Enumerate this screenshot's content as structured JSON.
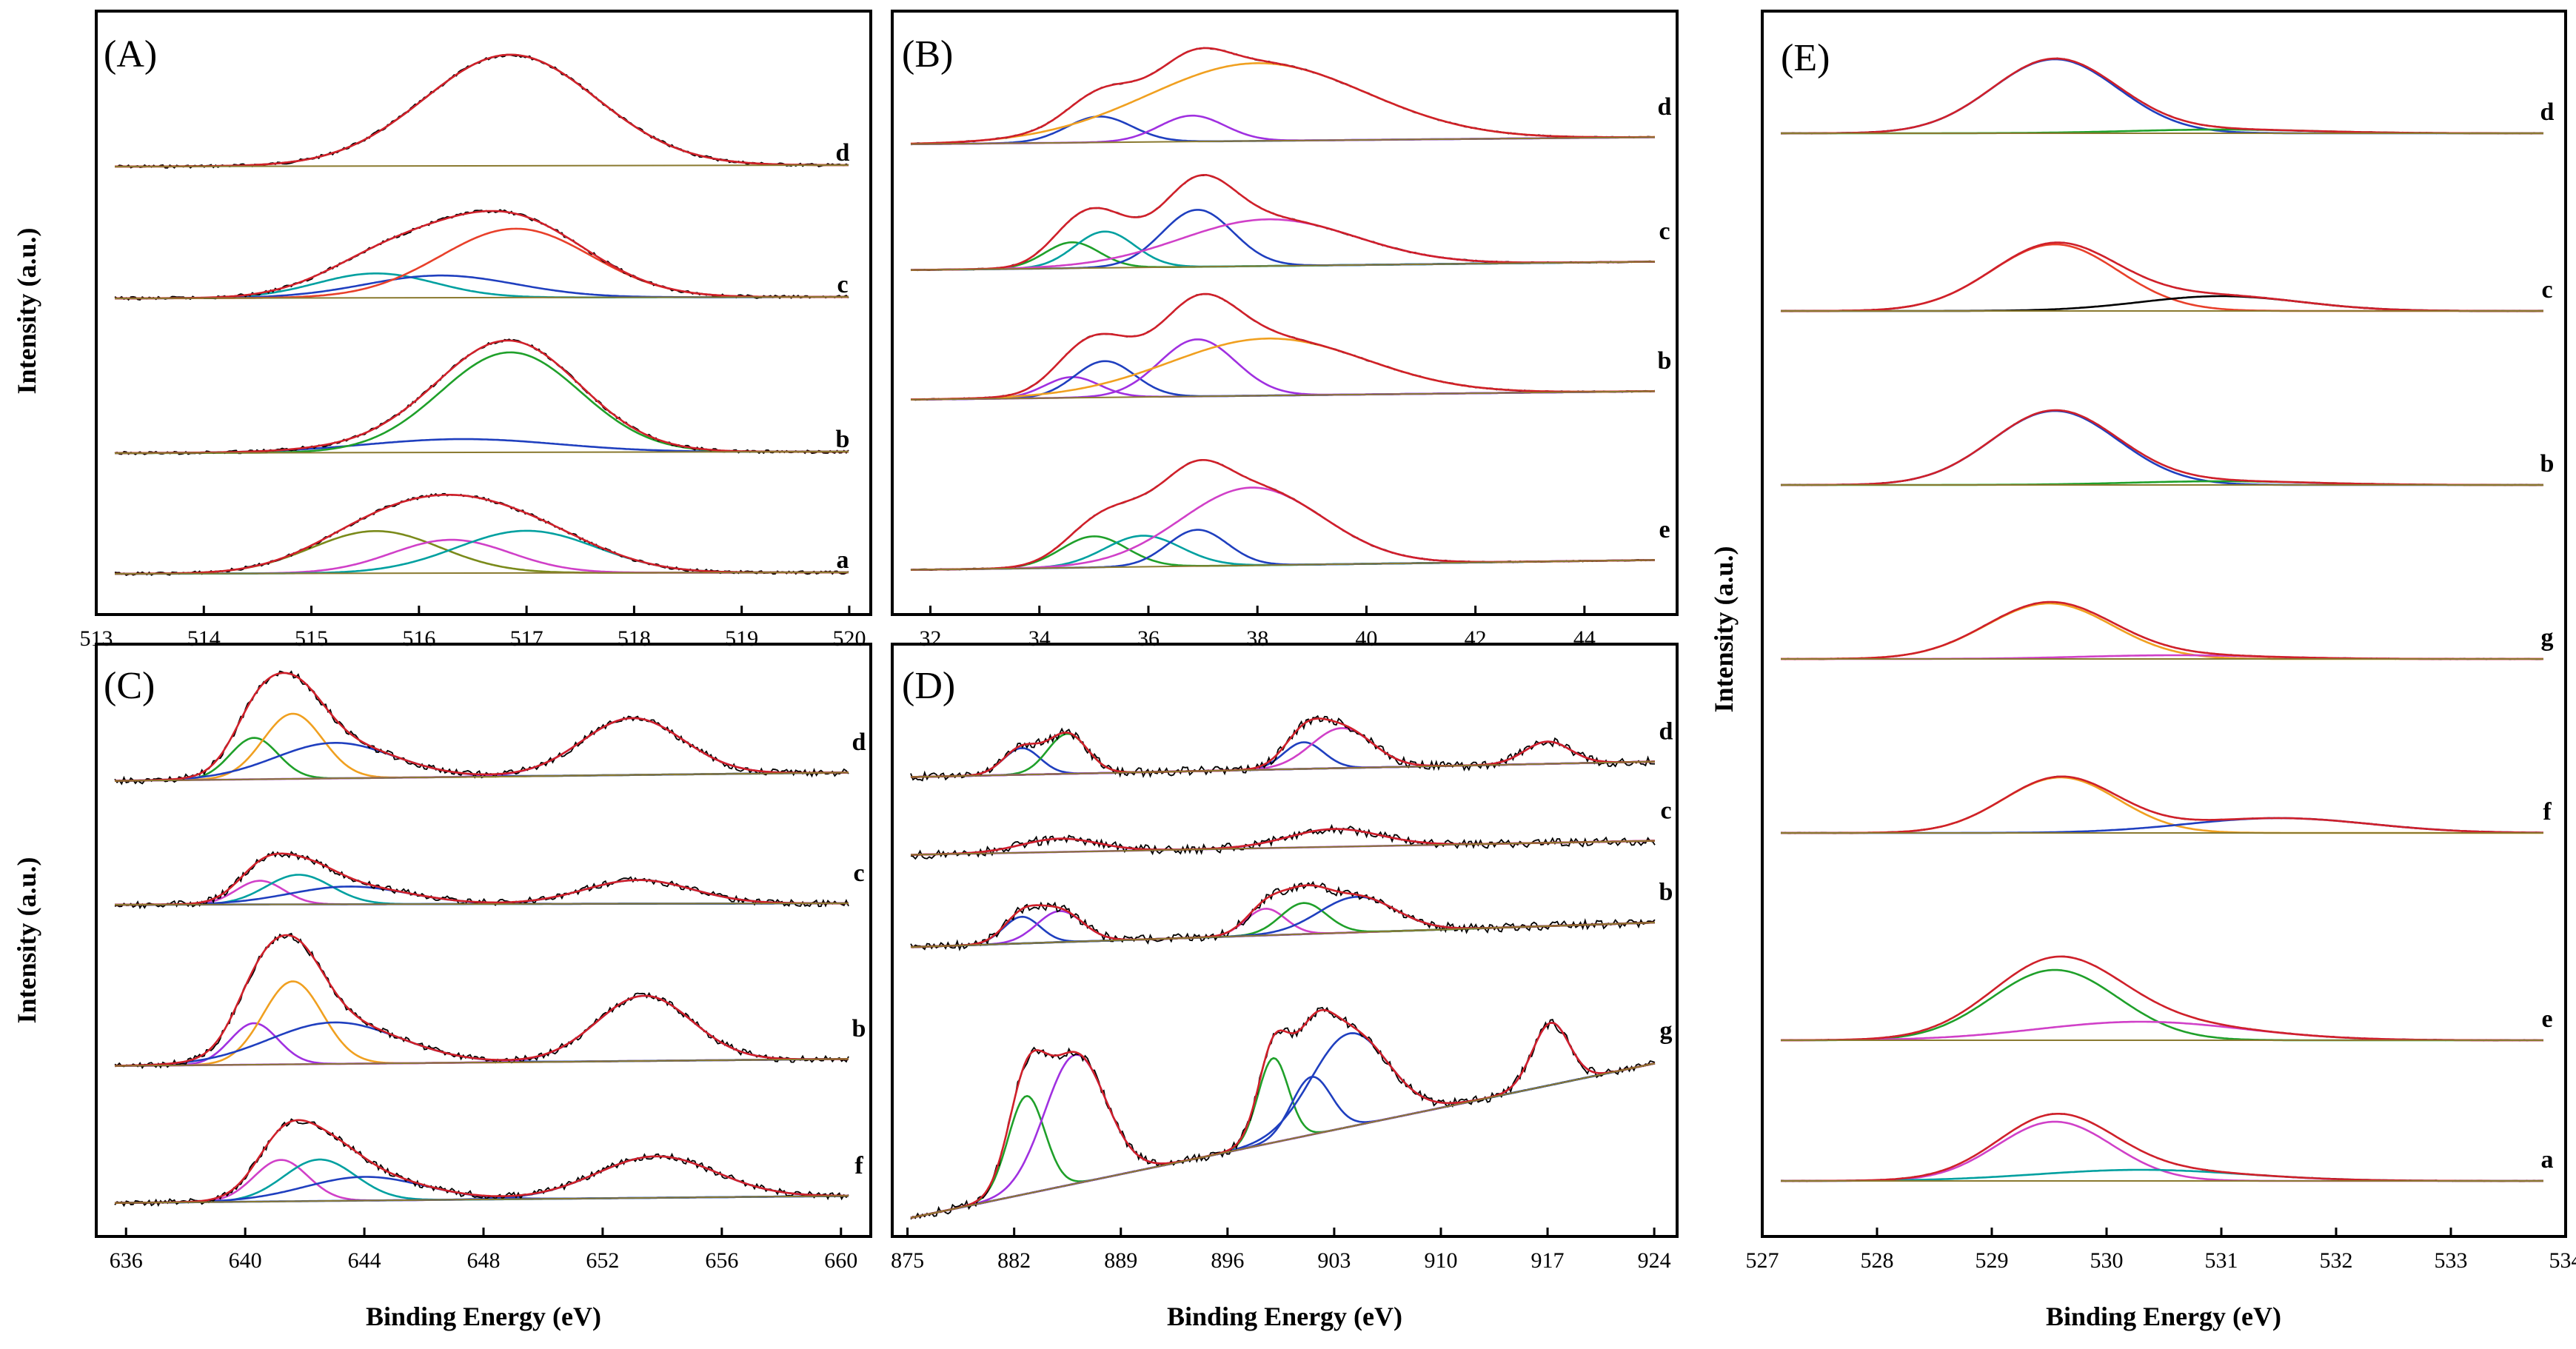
{
  "chart_data": [
    {
      "panel": "A",
      "label": "(A)",
      "type": "line",
      "x_ticks": [
        513,
        514,
        515,
        516,
        517,
        518,
        519,
        520
      ],
      "xlim": [
        513,
        520.2
      ],
      "series_labels": [
        "d",
        "c",
        "b",
        "a"
      ],
      "series": [
        {
          "name": "d",
          "peaks": [
            {
              "center": 516.85,
              "amplitude": 1.0,
              "width": 0.8,
              "color": "#8B4513"
            }
          ]
        },
        {
          "name": "c",
          "peaks": [
            {
              "center": 515.6,
              "amplitude": 0.22,
              "width": 0.55,
              "color": "#00a0a0"
            },
            {
              "center": 516.2,
              "amplitude": 0.2,
              "width": 0.7,
              "color": "#1f3fbf"
            },
            {
              "center": 516.9,
              "amplitude": 0.62,
              "width": 0.7,
              "color": "#e8402a"
            }
          ]
        },
        {
          "name": "b",
          "peaks": [
            {
              "center": 516.4,
              "amplitude": 0.12,
              "width": 0.9,
              "color": "#1f3fbf"
            },
            {
              "center": 516.85,
              "amplitude": 0.9,
              "width": 0.65,
              "color": "#1fa02a"
            }
          ]
        },
        {
          "name": "a",
          "peaks": [
            {
              "center": 515.6,
              "amplitude": 0.38,
              "width": 0.6,
              "color": "#7a8a1a"
            },
            {
              "center": 516.3,
              "amplitude": 0.3,
              "width": 0.55,
              "color": "#d040c8"
            },
            {
              "center": 517.0,
              "amplitude": 0.38,
              "width": 0.65,
              "color": "#00a0a0"
            }
          ]
        }
      ]
    },
    {
      "panel": "B",
      "label": "(B)",
      "type": "line",
      "x_ticks": [
        32,
        34,
        36,
        38,
        40,
        42,
        44
      ],
      "xlim": [
        31.3,
        45.7
      ],
      "series_labels": [
        "d",
        "c",
        "b",
        "e"
      ],
      "series": [
        {
          "name": "d",
          "peaks": [
            {
              "center": 35.1,
              "amplitude": 0.25,
              "width": 0.6,
              "color": "#1f3fbf"
            },
            {
              "center": 36.8,
              "amplitude": 0.25,
              "width": 0.6,
              "color": "#a030e0"
            },
            {
              "center": 38.0,
              "amplitude": 0.75,
              "width": 2.0,
              "color": "#f0a020"
            }
          ]
        },
        {
          "name": "c",
          "peaks": [
            {
              "center": 34.6,
              "amplitude": 0.25,
              "width": 0.5,
              "color": "#1fa02a"
            },
            {
              "center": 35.2,
              "amplitude": 0.35,
              "width": 0.55,
              "color": "#00a0a0"
            },
            {
              "center": 36.9,
              "amplitude": 0.55,
              "width": 0.65,
              "color": "#1f3fbf"
            },
            {
              "center": 38.2,
              "amplitude": 0.45,
              "width": 1.6,
              "color": "#d040c8"
            }
          ]
        },
        {
          "name": "b",
          "peaks": [
            {
              "center": 34.6,
              "amplitude": 0.2,
              "width": 0.5,
              "color": "#a030e0"
            },
            {
              "center": 35.2,
              "amplitude": 0.35,
              "width": 0.55,
              "color": "#1f3fbf"
            },
            {
              "center": 36.9,
              "amplitude": 0.55,
              "width": 0.7,
              "color": "#a030e0"
            },
            {
              "center": 38.2,
              "amplitude": 0.55,
              "width": 1.8,
              "color": "#f0a020"
            }
          ]
        },
        {
          "name": "e",
          "peaks": [
            {
              "center": 35.0,
              "amplitude": 0.3,
              "width": 0.6,
              "color": "#1fa02a"
            },
            {
              "center": 35.9,
              "amplitude": 0.3,
              "width": 0.7,
              "color": "#00a0a0"
            },
            {
              "center": 36.9,
              "amplitude": 0.35,
              "width": 0.55,
              "color": "#1f3fbf"
            },
            {
              "center": 37.9,
              "amplitude": 0.75,
              "width": 1.3,
              "color": "#d040c8"
            }
          ]
        }
      ]
    },
    {
      "panel": "C",
      "label": "(C)",
      "type": "line",
      "x_ticks": [
        636,
        640,
        644,
        648,
        652,
        656,
        660
      ],
      "xlim": [
        635,
        661
      ],
      "series_labels": [
        "d",
        "c",
        "b",
        "f"
      ],
      "series": [
        {
          "name": "d",
          "peaks": [
            {
              "center": 640.3,
              "amplitude": 0.35,
              "width": 0.8,
              "color": "#1fa02a"
            },
            {
              "center": 641.6,
              "amplitude": 0.55,
              "width": 1.0,
              "color": "#f0a020"
            },
            {
              "center": 643.0,
              "amplitude": 0.3,
              "width": 2.0,
              "color": "#1f3fbf"
            },
            {
              "center": 653.0,
              "amplitude": 0.48,
              "width": 1.7,
              "color": "#a030e0"
            }
          ]
        },
        {
          "name": "c",
          "peaks": [
            {
              "center": 640.5,
              "amplitude": 0.2,
              "width": 0.8,
              "color": "#d040c8"
            },
            {
              "center": 641.8,
              "amplitude": 0.25,
              "width": 1.1,
              "color": "#00a0a0"
            },
            {
              "center": 643.5,
              "amplitude": 0.15,
              "width": 2.0,
              "color": "#1f3fbf"
            },
            {
              "center": 653.2,
              "amplitude": 0.2,
              "width": 1.8,
              "color": "#1f3fbf"
            }
          ]
        },
        {
          "name": "b",
          "peaks": [
            {
              "center": 640.3,
              "amplitude": 0.35,
              "width": 0.8,
              "color": "#a030e0"
            },
            {
              "center": 641.6,
              "amplitude": 0.7,
              "width": 1.0,
              "color": "#f0a020"
            },
            {
              "center": 643.0,
              "amplitude": 0.35,
              "width": 2.2,
              "color": "#1f3fbf"
            },
            {
              "center": 653.4,
              "amplitude": 0.55,
              "width": 1.6,
              "color": "#a030e0"
            }
          ]
        },
        {
          "name": "f",
          "peaks": [
            {
              "center": 641.2,
              "amplitude": 0.35,
              "width": 0.9,
              "color": "#d040c8"
            },
            {
              "center": 642.5,
              "amplitude": 0.35,
              "width": 1.2,
              "color": "#00a0a0"
            },
            {
              "center": 644.0,
              "amplitude": 0.2,
              "width": 2.0,
              "color": "#1f3fbf"
            },
            {
              "center": 653.8,
              "amplitude": 0.35,
              "width": 2.0,
              "color": "#1f3fbf"
            }
          ]
        }
      ]
    },
    {
      "panel": "D",
      "label": "(D)",
      "type": "line",
      "x_ticks": [
        875,
        882,
        889,
        896,
        903,
        910,
        917,
        924
      ],
      "xlim": [
        874,
        925.5
      ],
      "series_labels": [
        "d",
        "c",
        "b",
        "g"
      ],
      "series": [
        {
          "name": "d",
          "peaks": [
            {
              "center": 882.5,
              "amplitude": 0.3,
              "width": 1.2,
              "color": "#1f3fbf"
            },
            {
              "center": 885.5,
              "amplitude": 0.45,
              "width": 1.3,
              "color": "#1fa02a"
            },
            {
              "center": 901.0,
              "amplitude": 0.3,
              "width": 1.3,
              "color": "#1f3fbf"
            },
            {
              "center": 903.5,
              "amplitude": 0.45,
              "width": 2.0,
              "color": "#d040c8"
            },
            {
              "center": 917.0,
              "amplitude": 0.25,
              "width": 1.5,
              "color": "#a030e0"
            }
          ]
        },
        {
          "name": "c",
          "peaks": [
            {
              "center": 885.0,
              "amplitude": 0.15,
              "width": 2.5,
              "color": "#a030e0"
            },
            {
              "center": 903.0,
              "amplitude": 0.2,
              "width": 3.0,
              "color": "#a030e0"
            }
          ]
        },
        {
          "name": "b",
          "peaks": [
            {
              "center": 882.5,
              "amplitude": 0.3,
              "width": 1.2,
              "color": "#1f3fbf"
            },
            {
              "center": 885.0,
              "amplitude": 0.35,
              "width": 1.5,
              "color": "#a030e0"
            },
            {
              "center": 898.5,
              "amplitude": 0.3,
              "width": 1.3,
              "color": "#d040c8"
            },
            {
              "center": 901.0,
              "amplitude": 0.35,
              "width": 1.5,
              "color": "#1fa02a"
            },
            {
              "center": 904.5,
              "amplitude": 0.4,
              "width": 2.5,
              "color": "#1f3fbf"
            }
          ]
        },
        {
          "name": "g",
          "peaks": [
            {
              "center": 882.8,
              "amplitude": 1.1,
              "width": 1.2,
              "color": "#1fa02a"
            },
            {
              "center": 886.0,
              "amplitude": 1.45,
              "width": 2.0,
              "color": "#a030e0"
            },
            {
              "center": 899.0,
              "amplitude": 0.95,
              "width": 1.0,
              "color": "#1fa02a"
            },
            {
              "center": 901.5,
              "amplitude": 0.65,
              "width": 1.3,
              "color": "#1f3fbf"
            },
            {
              "center": 904.0,
              "amplitude": 1.05,
              "width": 2.5,
              "color": "#1f3fbf"
            },
            {
              "center": 917.2,
              "amplitude": 0.7,
              "width": 1.2,
              "color": "#a030e0"
            }
          ]
        }
      ]
    },
    {
      "panel": "E",
      "label": "(E)",
      "type": "line",
      "x_ticks": [
        527,
        528,
        529,
        530,
        531,
        532,
        533,
        534
      ],
      "xlim": [
        527,
        534
      ],
      "series_labels": [
        "d",
        "c",
        "b",
        "g",
        "f",
        "e",
        "a"
      ],
      "series": [
        {
          "name": "d",
          "peaks": [
            {
              "center": 529.55,
              "amplitude": 1.0,
              "width": 0.55,
              "color": "#1f3fbf"
            },
            {
              "center": 531.0,
              "amplitude": 0.05,
              "width": 0.8,
              "color": "#1fa02a"
            }
          ]
        },
        {
          "name": "c",
          "peaks": [
            {
              "center": 529.55,
              "amplitude": 0.9,
              "width": 0.55,
              "color": "#e8402a"
            },
            {
              "center": 531.0,
              "amplitude": 0.2,
              "width": 0.7,
              "color": "#000000"
            }
          ]
        },
        {
          "name": "b",
          "peaks": [
            {
              "center": 529.55,
              "amplitude": 1.0,
              "width": 0.55,
              "color": "#1f3fbf"
            },
            {
              "center": 531.0,
              "amplitude": 0.05,
              "width": 0.8,
              "color": "#1fa02a"
            }
          ]
        },
        {
          "name": "g",
          "peaks": [
            {
              "center": 529.5,
              "amplitude": 0.75,
              "width": 0.55,
              "color": "#f0a020"
            },
            {
              "center": 530.6,
              "amplitude": 0.05,
              "width": 0.8,
              "color": "#d040c8"
            }
          ]
        },
        {
          "name": "f",
          "peaks": [
            {
              "center": 529.6,
              "amplitude": 0.75,
              "width": 0.5,
              "color": "#f0a020"
            },
            {
              "center": 531.5,
              "amplitude": 0.2,
              "width": 0.8,
              "color": "#1f3fbf"
            }
          ]
        },
        {
          "name": "e",
          "peaks": [
            {
              "center": 529.55,
              "amplitude": 0.95,
              "width": 0.55,
              "color": "#1fa02a"
            },
            {
              "center": 530.3,
              "amplitude": 0.25,
              "width": 0.9,
              "color": "#d040c8"
            }
          ]
        },
        {
          "name": "a",
          "peaks": [
            {
              "center": 529.55,
              "amplitude": 0.8,
              "width": 0.5,
              "color": "#d040c8"
            },
            {
              "center": 530.3,
              "amplitude": 0.15,
              "width": 0.9,
              "color": "#00a0a0"
            }
          ]
        }
      ]
    }
  ],
  "axes": {
    "ylabel": "Intensity (a.u.)",
    "xlabel": "Binding Energy (eV)"
  }
}
